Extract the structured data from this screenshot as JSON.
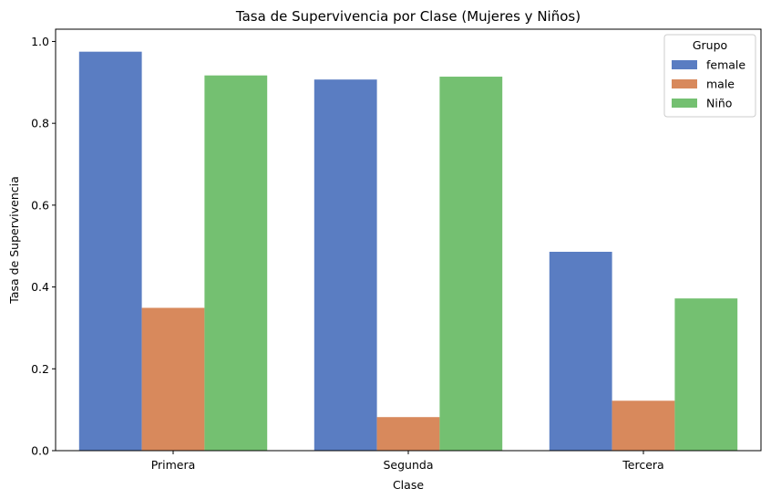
{
  "chart_data": {
    "type": "bar",
    "title": "Tasa de Supervivencia por Clase (Mujeres y Niños)",
    "xlabel": "Clase",
    "ylabel": "Tasa de Supervivencia",
    "categories": [
      "Primera",
      "Segunda",
      "Tercera"
    ],
    "ylim": [
      0,
      1.03
    ],
    "yticks": [
      "0.0",
      "0.2",
      "0.4",
      "0.6",
      "0.8",
      "1.0"
    ],
    "grid": false,
    "legend": {
      "title": "Grupo",
      "placement": "top-right"
    },
    "series": [
      {
        "name": "female",
        "color": "#5a7dc2",
        "values": [
          0.975,
          0.907,
          0.486
        ]
      },
      {
        "name": "male",
        "color": "#d8895c",
        "values": [
          0.349,
          0.082,
          0.122
        ]
      },
      {
        "name": "Niño",
        "color": "#74c071",
        "values": [
          0.917,
          0.914,
          0.372
        ]
      }
    ]
  }
}
